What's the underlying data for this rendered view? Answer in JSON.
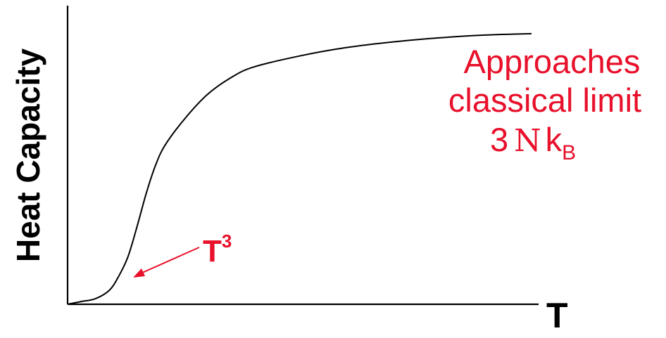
{
  "chart_data": {
    "type": "line",
    "title": "",
    "xlabel": "T",
    "ylabel": "Heat Capacity",
    "grid": false,
    "legend": "none",
    "axis_ticks": "none",
    "curve_shape": "sigmoid rising from origin toward a plateau",
    "series": [
      {
        "points_normalized": [
          [
            0.0,
            0.0
          ],
          [
            0.03,
            0.01
          ],
          [
            0.06,
            0.02
          ],
          [
            0.09,
            0.05
          ],
          [
            0.11,
            0.1
          ],
          [
            0.13,
            0.17
          ],
          [
            0.15,
            0.28
          ],
          [
            0.17,
            0.4
          ],
          [
            0.19,
            0.5
          ],
          [
            0.21,
            0.57
          ],
          [
            0.25,
            0.66
          ],
          [
            0.3,
            0.75
          ],
          [
            0.35,
            0.81
          ],
          [
            0.4,
            0.85
          ],
          [
            0.5,
            0.89
          ],
          [
            0.6,
            0.92
          ],
          [
            0.7,
            0.94
          ],
          [
            0.8,
            0.955
          ],
          [
            0.9,
            0.965
          ],
          [
            1.0,
            0.97
          ]
        ]
      }
    ],
    "annotations": {
      "low_temp": {
        "text_main": "T",
        "text_sup": "3",
        "color": "#e8102a"
      },
      "limit": {
        "line1": "Approaches",
        "line2": "classical limit",
        "formula_number": "3",
        "formula_N": "N",
        "formula_k": "k",
        "formula_sub": "B",
        "color": "#e8102a"
      }
    }
  },
  "colors": {
    "axis": "#000000",
    "curve": "#000000",
    "annotation": "#e8102a",
    "background": "#ffffff"
  }
}
